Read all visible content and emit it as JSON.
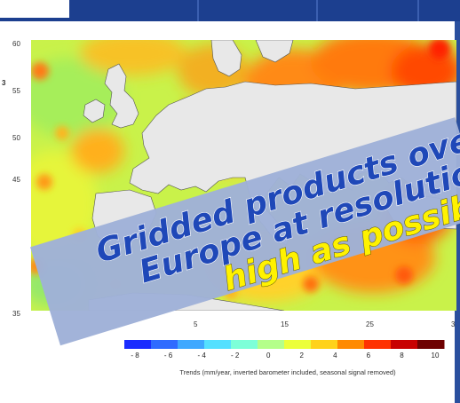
{
  "map": {
    "lat_ticks": [
      "60",
      "55",
      "50",
      "45",
      "35"
    ],
    "lon_ticks": [
      "5",
      "15",
      "25",
      "3"
    ],
    "edge_label": "3"
  },
  "colorbar": {
    "ticks": [
      "- 8",
      "- 6",
      "- 4",
      "- 2",
      "0",
      "2",
      "4",
      "6",
      "8",
      "10"
    ],
    "colors": [
      "#1a2cff",
      "#2f6bff",
      "#3fa8ff",
      "#55e0ff",
      "#7dffd8",
      "#b4ff8a",
      "#ecff3a",
      "#ffd21a",
      "#ff8a00",
      "#ff3200",
      "#c80000",
      "#6e0000"
    ],
    "caption": "Trends (mm/year, inverted barometer included, seasonal signal removed)"
  },
  "banner": {
    "line1": "Gridded products over",
    "line2": "Europe at resolution",
    "line3": "high as possible",
    "text_color": "#1f48b8",
    "highlight_color": "#fff200",
    "bg_color": "#9fb1d8"
  }
}
